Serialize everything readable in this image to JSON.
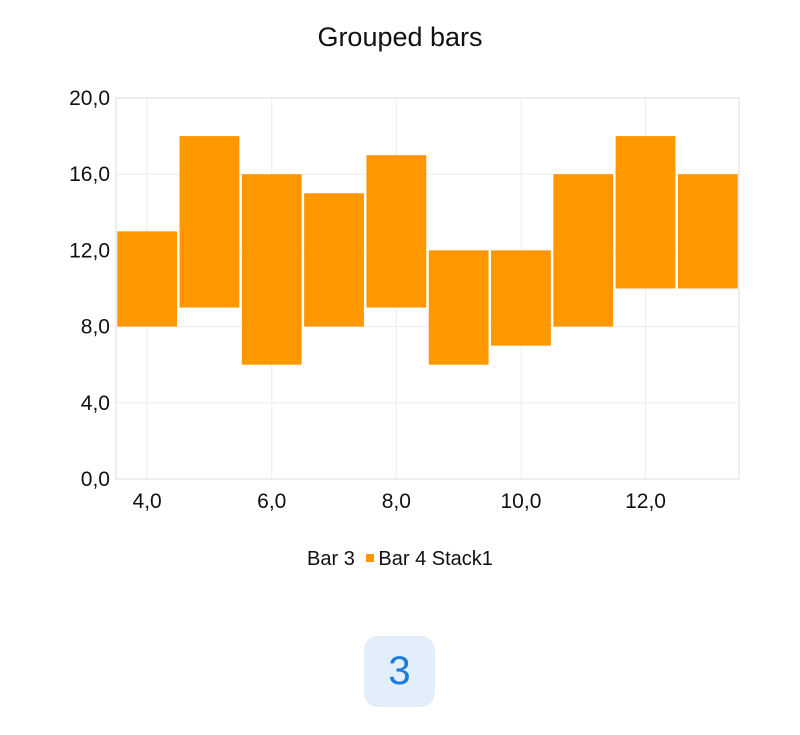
{
  "page_number": "3",
  "colors": {
    "accent": "#ff9800",
    "badge_bg": "#e3eefb",
    "badge_text": "#1a7be0",
    "grid": "#eeeeee"
  },
  "chart_data": {
    "type": "bar",
    "title": "Grouped bars",
    "xlabel": "",
    "ylabel": "",
    "xlim": [
      3.5,
      13.5
    ],
    "ylim": [
      0,
      20
    ],
    "x_ticks": [
      "4,0",
      "6,0",
      "8,0",
      "10,0",
      "12,0"
    ],
    "y_ticks": [
      "0,0",
      "4,0",
      "8,0",
      "12,0",
      "16,0",
      "20,0"
    ],
    "grid": true,
    "legend_position": "bottom",
    "legend": [
      {
        "label": "Bar 3",
        "color": ""
      },
      {
        "label": "Bar 4 Stack1",
        "color": "#ff9800"
      }
    ],
    "series": [
      {
        "name": "Bar 4 Stack1",
        "color": "#ff9800",
        "x": [
          4,
          5,
          6,
          7,
          8,
          9,
          10,
          11,
          12,
          13
        ],
        "low": [
          8,
          9,
          6,
          8,
          9,
          6,
          7,
          8,
          10,
          10
        ],
        "high": [
          13,
          18,
          16,
          15,
          17,
          12,
          12,
          16,
          18,
          16
        ]
      }
    ]
  }
}
